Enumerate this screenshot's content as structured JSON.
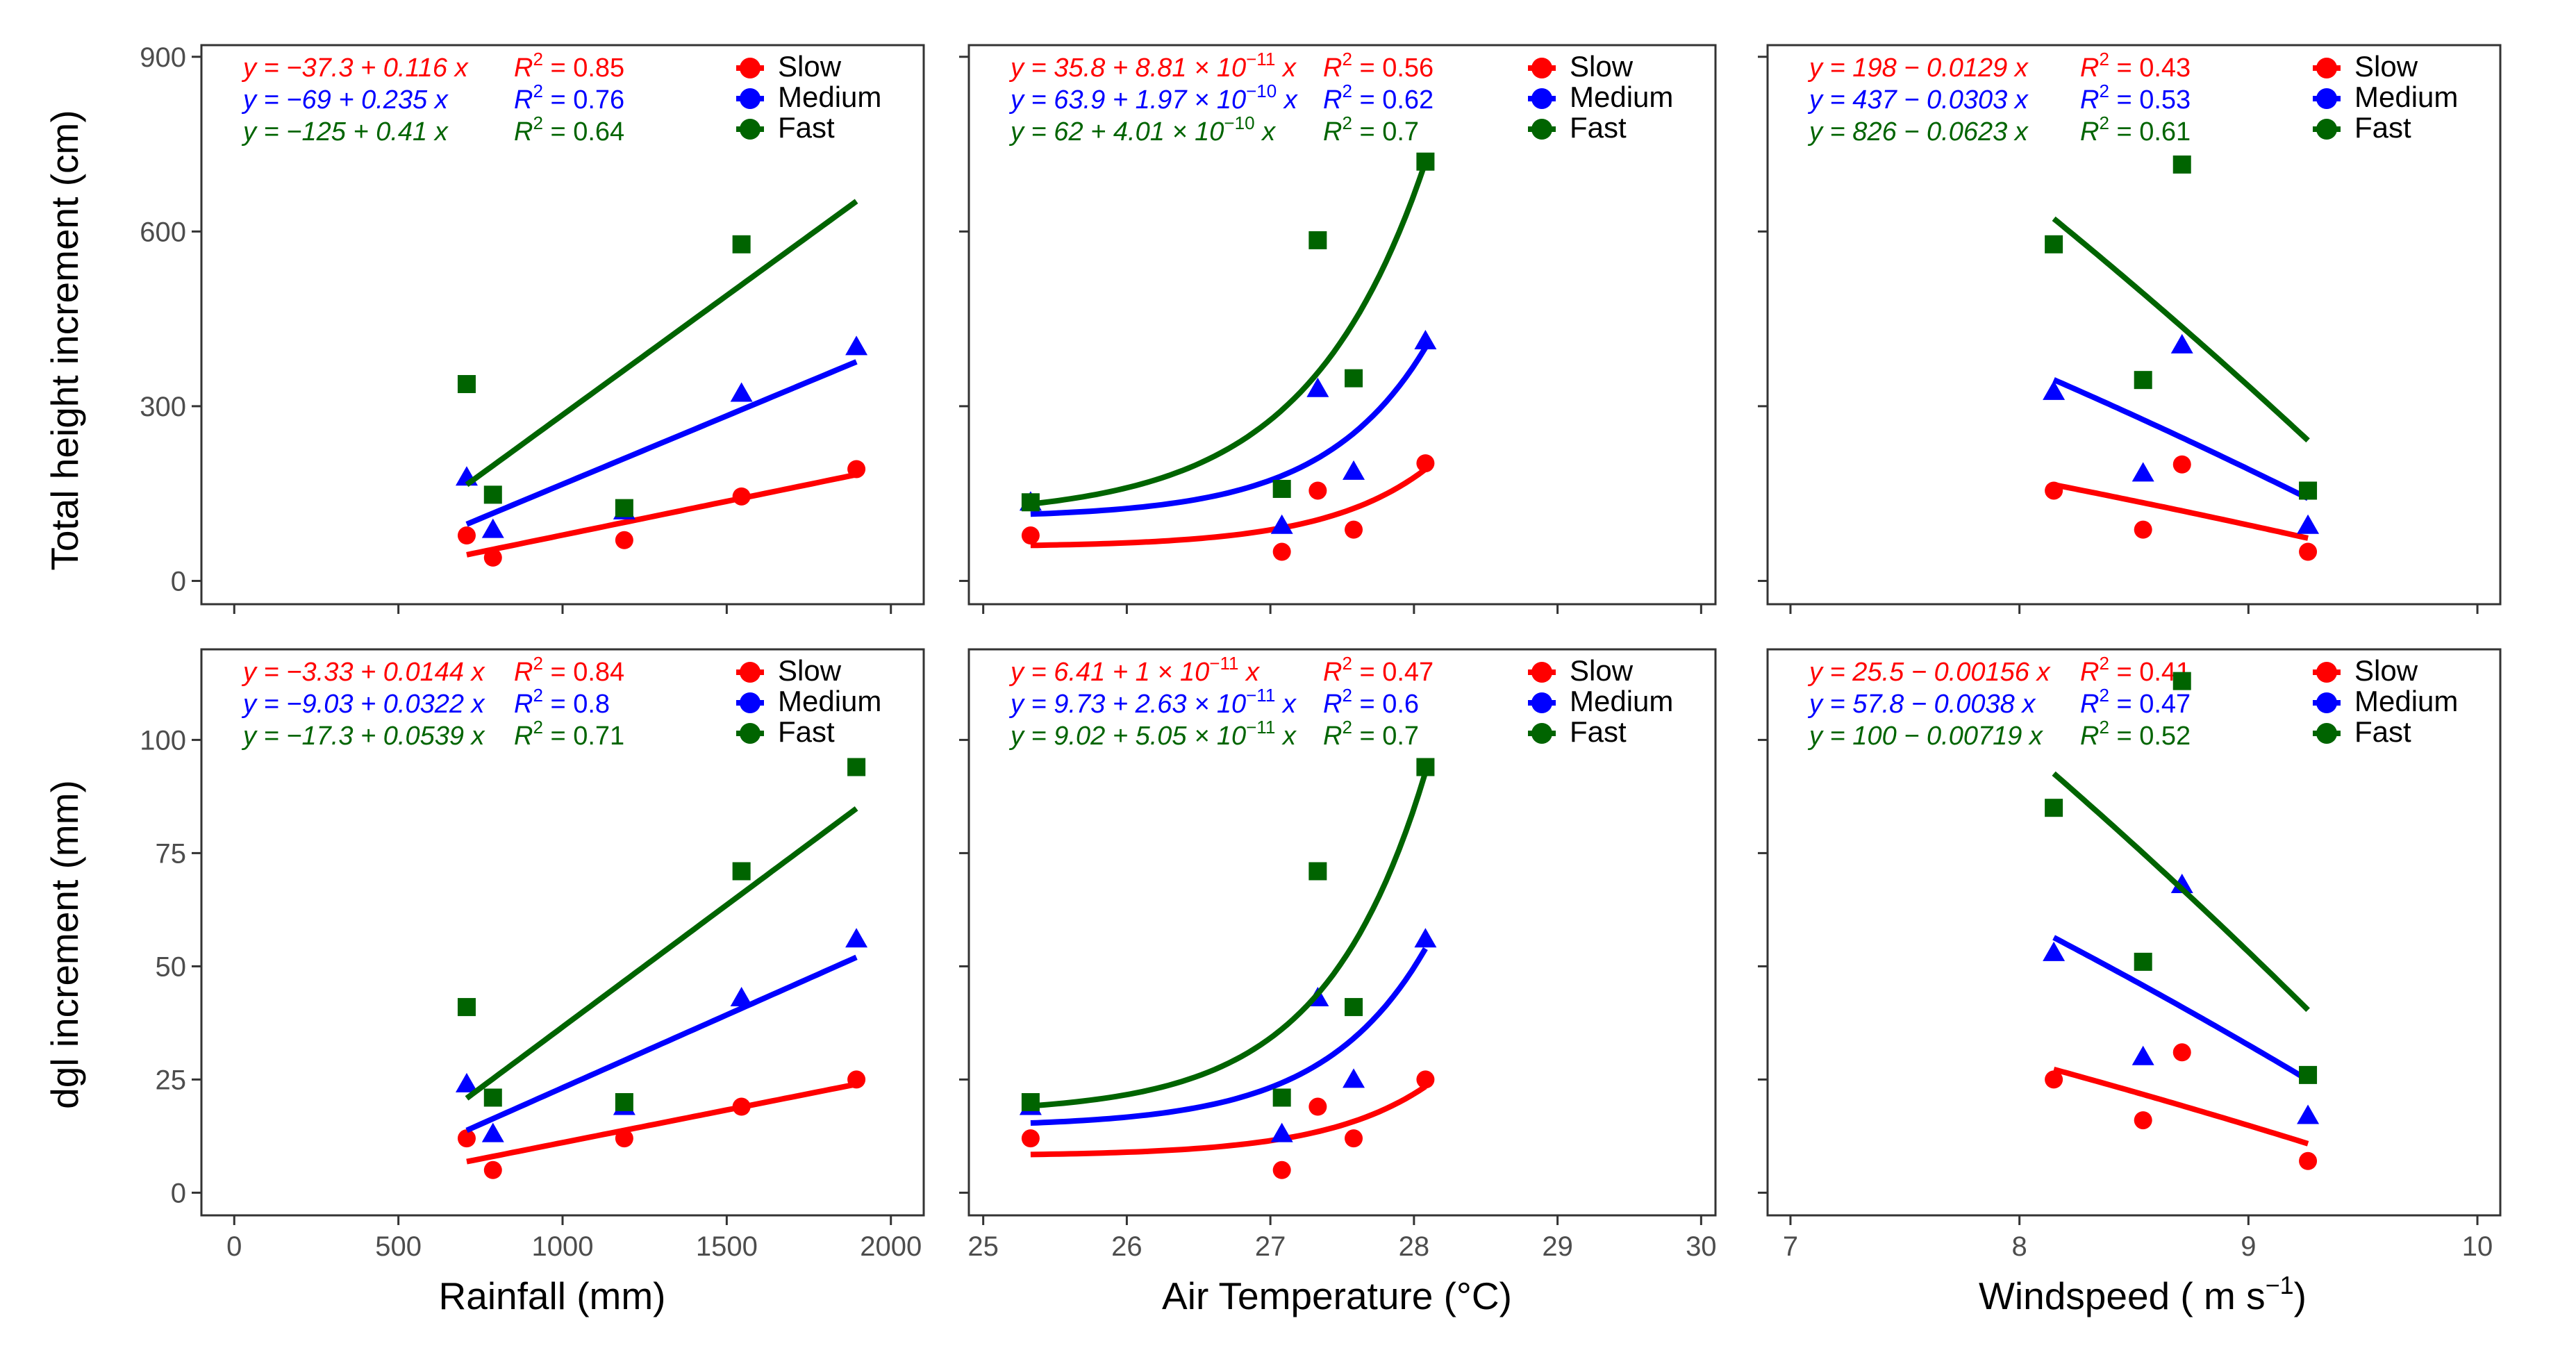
{
  "colors": {
    "slow": "#ff0000",
    "medium": "#0000ff",
    "fast": "#006400",
    "axis": "#333333",
    "text": "#000000",
    "tick_label": "#4d4d4d"
  },
  "labels": {
    "y_top": "Total height increment (cm)",
    "y_bottom": "dgl increment (mm)",
    "x": [
      "Rainfall (mm)",
      "Air Temperature  (°C)",
      "Windspeed ( m s"
    ],
    "x_superscript": [
      "",
      "",
      "−1"
    ],
    "x_suffix": [
      "",
      "",
      ")"
    ]
  },
  "chart_data": [
    {
      "id": "height_rainfall",
      "type": "scatter",
      "row": 0,
      "col": 0,
      "model": "linear",
      "xlim": [
        -100,
        2100
      ],
      "ylim": [
        -40,
        920
      ],
      "x_ticks": [
        0,
        500,
        1000,
        1500,
        2000
      ],
      "x_tick_labels": [
        "0",
        "500",
        "1000",
        "1500",
        "2000"
      ],
      "show_x_tick_labels": false,
      "y_ticks": [
        0,
        300,
        600,
        900
      ],
      "y_tick_labels": [
        "0",
        "300",
        "600",
        "900"
      ],
      "show_y_tick_labels": true,
      "legend": {
        "position": "top-right",
        "entries": [
          "Slow",
          "Medium",
          "Fast"
        ]
      },
      "series": [
        {
          "name": "Slow",
          "marker": "circle",
          "x": [
            708,
            788,
            1188,
            1545,
            1895
          ],
          "y": [
            78,
            40,
            70,
            145,
            192
          ],
          "fit": {
            "a": -37.3,
            "b": 0.116,
            "x_range": [
              708,
              1895
            ]
          },
          "equation": "y = −37.3 + 0.116 x",
          "r2": "0.85"
        },
        {
          "name": "Medium",
          "marker": "triangle",
          "x": [
            708,
            788,
            1188,
            1545,
            1895
          ],
          "y": [
            178,
            88,
            120,
            322,
            402
          ],
          "fit": {
            "a": -69,
            "b": 0.235,
            "x_range": [
              708,
              1895
            ]
          },
          "equation": "y = −69 + 0.235 x",
          "r2": "0.76"
        },
        {
          "name": "Fast",
          "marker": "square",
          "x": [
            708,
            788,
            1188,
            1545,
            1895
          ],
          "y": [
            338,
            148,
            125,
            578,
            null
          ],
          "fit": {
            "a": -125,
            "b": 0.41,
            "x_range": [
              708,
              1895
            ]
          },
          "equation": "y = −125 + 0.41 x",
          "r2": "0.64"
        }
      ]
    },
    {
      "id": "height_temperature",
      "type": "scatter",
      "row": 0,
      "col": 1,
      "model": "exponential",
      "xlim": [
        24.9,
        30.1
      ],
      "ylim": [
        -40,
        920
      ],
      "x_ticks": [
        25,
        26,
        27,
        28,
        29,
        30
      ],
      "x_tick_labels": [
        "25",
        "26",
        "27",
        "28",
        "29",
        "30"
      ],
      "show_x_tick_labels": false,
      "y_ticks": [
        0,
        300,
        600,
        900
      ],
      "y_tick_labels": [
        "0",
        "300",
        "600",
        "900"
      ],
      "show_y_tick_labels": false,
      "legend": {
        "position": "top-right",
        "entries": [
          "Slow",
          "Medium",
          "Fast"
        ]
      },
      "series": [
        {
          "name": "Slow",
          "marker": "circle",
          "x": [
            25.33,
            27.08,
            27.33,
            27.58,
            28.08
          ],
          "y": [
            78,
            50,
            155,
            88,
            202
          ],
          "fit": {
            "a": 35.8,
            "b": 8.81e-11,
            "x_range": [
              25.33,
              28.08
            ]
          },
          "equation": "y = 35.8 + 8.81 × 10",
          "equation_exp": "−11",
          "equation_tail": " x",
          "r2": "0.56"
        },
        {
          "name": "Medium",
          "marker": "triangle",
          "x": [
            25.33,
            27.08,
            27.33,
            27.58,
            28.08
          ],
          "y": [
            135,
            95,
            330,
            188,
            412
          ],
          "fit": {
            "a": 63.9,
            "b": 1.97e-10,
            "x_range": [
              25.33,
              28.08
            ]
          },
          "equation": "y = 63.9 + 1.97 × 10",
          "equation_exp": "−10",
          "equation_tail": " x",
          "r2": "0.62"
        },
        {
          "name": "Fast",
          "marker": "square",
          "x": [
            25.33,
            27.08,
            27.33,
            27.58,
            28.08
          ],
          "y": [
            135,
            158,
            585,
            348,
            720
          ],
          "fit": {
            "a": 62,
            "b": 4.01e-10,
            "x_range": [
              25.33,
              28.08
            ]
          },
          "equation": "y = 62 + 4.01 × 10",
          "equation_exp": "−10",
          "equation_tail": " x",
          "r2": "0.7"
        }
      ]
    },
    {
      "id": "height_windspeed",
      "type": "scatter",
      "row": 0,
      "col": 2,
      "model": "quadratic",
      "xlim": [
        6.9,
        10.1
      ],
      "ylim": [
        -40,
        920
      ],
      "x_ticks": [
        7,
        8,
        9,
        10
      ],
      "x_tick_labels": [
        "7",
        "8",
        "9",
        "10"
      ],
      "show_x_tick_labels": false,
      "y_ticks": [
        0,
        300,
        600,
        900
      ],
      "y_tick_labels": [
        "0",
        "300",
        "600",
        "900"
      ],
      "show_y_tick_labels": false,
      "legend": {
        "position": "top-right",
        "entries": [
          "Slow",
          "Medium",
          "Fast"
        ]
      },
      "series": [
        {
          "name": "Slow",
          "marker": "circle",
          "x": [
            8.15,
            8.54,
            8.71,
            9.26
          ],
          "y": [
            155,
            88,
            200,
            50
          ],
          "fit": {
            "a": 198,
            "b": -0.0129,
            "x_range": [
              8.15,
              9.26
            ]
          },
          "equation": "y = 198 − 0.0129 x",
          "r2": "0.43"
        },
        {
          "name": "Medium",
          "marker": "triangle",
          "x": [
            8.15,
            8.54,
            8.71,
            9.26
          ],
          "y": [
            325,
            185,
            405,
            95
          ],
          "fit": {
            "a": 437,
            "b": -0.0303,
            "x_range": [
              8.15,
              9.26
            ]
          },
          "equation": "y = 437 − 0.0303 x",
          "r2": "0.53"
        },
        {
          "name": "Fast",
          "marker": "square",
          "x": [
            8.15,
            8.54,
            8.71,
            9.26
          ],
          "y": [
            578,
            345,
            715,
            155
          ],
          "fit": {
            "a": 826,
            "b": -0.0623,
            "x_range": [
              8.15,
              9.26
            ]
          },
          "equation": "y = 826 − 0.0623 x",
          "r2": "0.61"
        }
      ]
    },
    {
      "id": "dgl_rainfall",
      "type": "scatter",
      "row": 1,
      "col": 0,
      "model": "linear",
      "xlim": [
        -100,
        2100
      ],
      "ylim": [
        -5,
        120
      ],
      "x_ticks": [
        0,
        500,
        1000,
        1500,
        2000
      ],
      "x_tick_labels": [
        "0",
        "500",
        "1000",
        "1500",
        "2000"
      ],
      "show_x_tick_labels": true,
      "y_ticks": [
        0,
        25,
        50,
        75,
        100
      ],
      "y_tick_labels": [
        "0",
        "25",
        "50",
        "75",
        "100"
      ],
      "show_y_tick_labels": true,
      "legend": {
        "position": "top-right",
        "entries": [
          "Slow",
          "Medium",
          "Fast"
        ]
      },
      "series": [
        {
          "name": "Slow",
          "marker": "circle",
          "x": [
            708,
            788,
            1188,
            1545,
            1895
          ],
          "y": [
            12,
            5,
            12,
            19,
            25
          ],
          "fit": {
            "a": -3.33,
            "b": 0.0144,
            "x_range": [
              708,
              1895
            ]
          },
          "equation": "y = −3.33 + 0.0144 x",
          "r2": "0.84"
        },
        {
          "name": "Medium",
          "marker": "triangle",
          "x": [
            708,
            788,
            1188,
            1545,
            1895
          ],
          "y": [
            24,
            13,
            19,
            43,
            56
          ],
          "fit": {
            "a": -9.03,
            "b": 0.0322,
            "x_range": [
              708,
              1895
            ]
          },
          "equation": "y = −9.03 + 0.0322 x",
          "r2": "0.8"
        },
        {
          "name": "Fast",
          "marker": "square",
          "x": [
            708,
            788,
            1188,
            1545,
            1895
          ],
          "y": [
            41,
            21,
            20,
            71,
            94
          ],
          "fit": {
            "a": -17.3,
            "b": 0.0539,
            "x_range": [
              708,
              1895
            ]
          },
          "equation": "y = −17.3 + 0.0539 x",
          "r2": "0.71"
        }
      ]
    },
    {
      "id": "dgl_temperature",
      "type": "scatter",
      "row": 1,
      "col": 1,
      "model": "exponential",
      "xlim": [
        24.9,
        30.1
      ],
      "ylim": [
        -5,
        120
      ],
      "x_ticks": [
        25,
        26,
        27,
        28,
        29,
        30
      ],
      "x_tick_labels": [
        "25",
        "26",
        "27",
        "28",
        "29",
        "30"
      ],
      "show_x_tick_labels": true,
      "y_ticks": [
        0,
        25,
        50,
        75,
        100
      ],
      "y_tick_labels": [
        "0",
        "25",
        "50",
        "75",
        "100"
      ],
      "show_y_tick_labels": false,
      "legend": {
        "position": "top-right",
        "entries": [
          "Slow",
          "Medium",
          "Fast"
        ]
      },
      "series": [
        {
          "name": "Slow",
          "marker": "circle",
          "x": [
            25.33,
            27.08,
            27.33,
            27.58,
            28.08
          ],
          "y": [
            12,
            5,
            19,
            12,
            25
          ],
          "fit": {
            "a": 6.41,
            "b": 1e-11,
            "x_range": [
              25.33,
              28.08
            ]
          },
          "equation": "y = 6.41 + 1 × 10",
          "equation_exp": "−11",
          "equation_tail": " x",
          "r2": "0.47"
        },
        {
          "name": "Medium",
          "marker": "triangle",
          "x": [
            25.33,
            27.08,
            27.33,
            27.58,
            28.08
          ],
          "y": [
            19,
            13,
            43,
            25,
            56
          ],
          "fit": {
            "a": 9.73,
            "b": 2.63e-11,
            "x_range": [
              25.33,
              28.08
            ]
          },
          "equation": "y = 9.73 + 2.63 × 10",
          "equation_exp": "−11",
          "equation_tail": " x",
          "r2": "0.6"
        },
        {
          "name": "Fast",
          "marker": "square",
          "x": [
            25.33,
            27.08,
            27.33,
            27.58,
            28.08
          ],
          "y": [
            20,
            21,
            71,
            41,
            94
          ],
          "fit": {
            "a": 9.02,
            "b": 5.05e-11,
            "x_range": [
              25.33,
              28.08
            ]
          },
          "equation": "y = 9.02 + 5.05 × 10",
          "equation_exp": "−11",
          "equation_tail": " x",
          "r2": "0.7"
        }
      ]
    },
    {
      "id": "dgl_windspeed",
      "type": "scatter",
      "row": 1,
      "col": 2,
      "model": "quadratic",
      "xlim": [
        6.9,
        10.1
      ],
      "ylim": [
        -5,
        120
      ],
      "x_ticks": [
        7,
        8,
        9,
        10
      ],
      "x_tick_labels": [
        "7",
        "8",
        "9",
        "10"
      ],
      "show_x_tick_labels": true,
      "y_ticks": [
        0,
        25,
        50,
        75,
        100
      ],
      "y_tick_labels": [
        "0",
        "25",
        "50",
        "75",
        "100"
      ],
      "show_y_tick_labels": false,
      "legend": {
        "position": "top-right",
        "entries": [
          "Slow",
          "Medium",
          "Fast"
        ]
      },
      "series": [
        {
          "name": "Slow",
          "marker": "circle",
          "x": [
            8.15,
            8.54,
            8.71,
            9.26
          ],
          "y": [
            25,
            16,
            31,
            7
          ],
          "fit": {
            "a": 25.5,
            "b": -0.00156,
            "x_range": [
              8.15,
              9.26
            ]
          },
          "equation": "y = 25.5 − 0.00156 x",
          "r2": "0.41"
        },
        {
          "name": "Medium",
          "marker": "triangle",
          "x": [
            8.15,
            8.54,
            8.71,
            9.26
          ],
          "y": [
            53,
            30,
            68,
            17
          ],
          "fit": {
            "a": 57.8,
            "b": -0.0038,
            "x_range": [
              8.15,
              9.26
            ]
          },
          "equation": "y = 57.8 − 0.0038 x",
          "r2": "0.47"
        },
        {
          "name": "Fast",
          "marker": "square",
          "x": [
            8.15,
            8.54,
            8.71,
            9.26
          ],
          "y": [
            85,
            51,
            113,
            26
          ],
          "fit": {
            "a": 100,
            "b": -0.00719,
            "x_range": [
              8.15,
              9.26
            ]
          },
          "equation": "y = 100 − 0.00719 x",
          "r2": "0.52"
        }
      ]
    }
  ]
}
